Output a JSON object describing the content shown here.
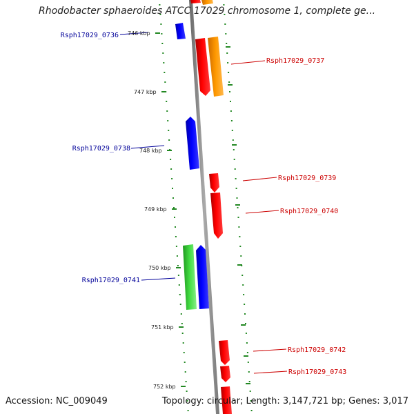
{
  "title": "Rhodobacter sphaeroides ATCC 17029 chromosome 1, complete ge...",
  "accession": {
    "label": "Accession:",
    "value": "NC_009049"
  },
  "topology_text": "Topology: circular; Length: 3,147,721 bp; Genes: 3,017",
  "colors": {
    "blue": "#0000ff",
    "red": "#ff0000",
    "orange": "#ff9900",
    "green": "#33cc33",
    "tick": "#228822",
    "axis": "#888888",
    "label_blue": "#000099",
    "label_red": "#cc0000"
  },
  "ticks": [
    {
      "kbp": 746,
      "label": "746 kbp"
    },
    {
      "kbp": 747,
      "label": "747 kbp"
    },
    {
      "kbp": 748,
      "label": "748 kbp"
    },
    {
      "kbp": 749,
      "label": "749 kbp"
    },
    {
      "kbp": 750,
      "label": "750 kbp"
    },
    {
      "kbp": 751,
      "label": "751 kbp"
    },
    {
      "kbp": 752,
      "label": "752 kbp"
    }
  ],
  "genes": [
    {
      "name": "Rsph17029_0736",
      "strand": "-",
      "color": "blue",
      "labeled": true
    },
    {
      "name": "Rsph17029_0737",
      "strand": "+",
      "color": "red",
      "labeled": true
    },
    {
      "name": "orange-feature",
      "strand": "+",
      "color": "orange",
      "labeled": false
    },
    {
      "name": "Rsph17029_0738",
      "strand": "-",
      "color": "blue",
      "labeled": true
    },
    {
      "name": "Rsph17029_0739",
      "strand": "+",
      "color": "red",
      "labeled": true
    },
    {
      "name": "Rsph17029_0740",
      "strand": "+",
      "color": "red",
      "labeled": true
    },
    {
      "name": "green-feature",
      "strand": "-",
      "color": "green",
      "labeled": false
    },
    {
      "name": "Rsph17029_0741",
      "strand": "-",
      "color": "blue",
      "labeled": true
    },
    {
      "name": "Rsph17029_0742",
      "strand": "+",
      "color": "red",
      "labeled": true
    },
    {
      "name": "Rsph17029_0743",
      "strand": "+",
      "color": "red",
      "labeled": true
    }
  ]
}
